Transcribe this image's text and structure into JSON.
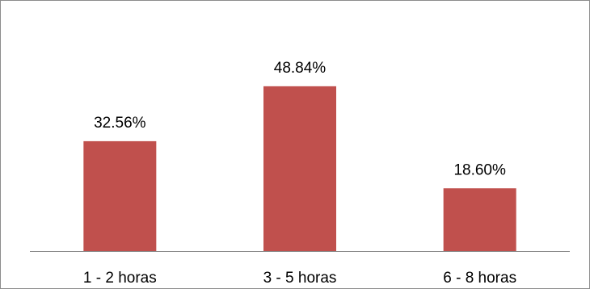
{
  "chart_data": {
    "type": "bar",
    "title": "",
    "xlabel": "",
    "ylabel": "",
    "categories": [
      "1 - 2 horas",
      "3 - 5 horas",
      "6 - 8 horas"
    ],
    "values": [
      32.56,
      48.84,
      18.6
    ],
    "value_labels": [
      "32.56%",
      "48.84%",
      "18.60%"
    ],
    "ylim": [
      0,
      55
    ],
    "grid": false,
    "legend": "none",
    "bar_color": "#c0504d",
    "axis_color": "#868686"
  }
}
